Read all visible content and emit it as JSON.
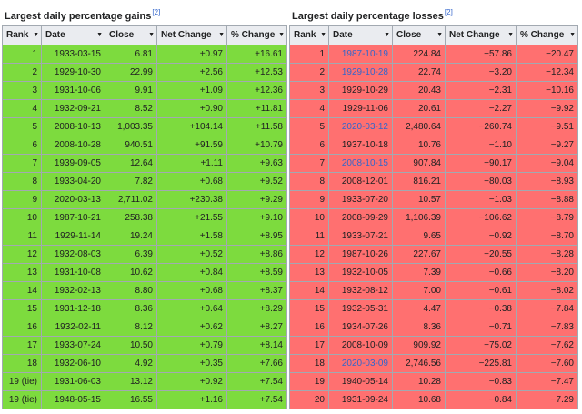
{
  "gains": {
    "title": "Largest daily percentage gains",
    "ref": "[2]",
    "headers": [
      "Rank",
      "Date",
      "Close",
      "Net Change",
      "% Change"
    ],
    "rows": [
      {
        "rank": "1",
        "date": "1933-03-15",
        "close": "6.81",
        "net": "+0.97",
        "pct": "+16.61"
      },
      {
        "rank": "2",
        "date": "1929-10-30",
        "close": "22.99",
        "net": "+2.56",
        "pct": "+12.53"
      },
      {
        "rank": "3",
        "date": "1931-10-06",
        "close": "9.91",
        "net": "+1.09",
        "pct": "+12.36"
      },
      {
        "rank": "4",
        "date": "1932-09-21",
        "close": "8.52",
        "net": "+0.90",
        "pct": "+11.81"
      },
      {
        "rank": "5",
        "date": "2008-10-13",
        "close": "1,003.35",
        "net": "+104.14",
        "pct": "+11.58"
      },
      {
        "rank": "6",
        "date": "2008-10-28",
        "close": "940.51",
        "net": "+91.59",
        "pct": "+10.79"
      },
      {
        "rank": "7",
        "date": "1939-09-05",
        "close": "12.64",
        "net": "+1.11",
        "pct": "+9.63"
      },
      {
        "rank": "8",
        "date": "1933-04-20",
        "close": "7.82",
        "net": "+0.68",
        "pct": "+9.52"
      },
      {
        "rank": "9",
        "date": "2020-03-13",
        "close": "2,711.02",
        "net": "+230.38",
        "pct": "+9.29"
      },
      {
        "rank": "10",
        "date": "1987-10-21",
        "close": "258.38",
        "net": "+21.55",
        "pct": "+9.10"
      },
      {
        "rank": "11",
        "date": "1929-11-14",
        "close": "19.24",
        "net": "+1.58",
        "pct": "+8.95"
      },
      {
        "rank": "12",
        "date": "1932-08-03",
        "close": "6.39",
        "net": "+0.52",
        "pct": "+8.86"
      },
      {
        "rank": "13",
        "date": "1931-10-08",
        "close": "10.62",
        "net": "+0.84",
        "pct": "+8.59"
      },
      {
        "rank": "14",
        "date": "1932-02-13",
        "close": "8.80",
        "net": "+0.68",
        "pct": "+8.37"
      },
      {
        "rank": "15",
        "date": "1931-12-18",
        "close": "8.36",
        "net": "+0.64",
        "pct": "+8.29"
      },
      {
        "rank": "16",
        "date": "1932-02-11",
        "close": "8.12",
        "net": "+0.62",
        "pct": "+8.27"
      },
      {
        "rank": "17",
        "date": "1933-07-24",
        "close": "10.50",
        "net": "+0.79",
        "pct": "+8.14"
      },
      {
        "rank": "18",
        "date": "1932-06-10",
        "close": "4.92",
        "net": "+0.35",
        "pct": "+7.66"
      },
      {
        "rank": "19 (tie)",
        "date": "1931-06-03",
        "close": "13.12",
        "net": "+0.92",
        "pct": "+7.54"
      },
      {
        "rank": "19 (tie)",
        "date": "1948-05-15",
        "close": "16.55",
        "net": "+1.16",
        "pct": "+7.54"
      }
    ]
  },
  "losses": {
    "title": "Largest daily percentage losses",
    "ref": "[2]",
    "headers": [
      "Rank",
      "Date",
      "Close",
      "Net Change",
      "% Change"
    ],
    "rows": [
      {
        "rank": "1",
        "date": "1987-10-19",
        "link": true,
        "close": "224.84",
        "net": "−57.86",
        "pct": "−20.47"
      },
      {
        "rank": "2",
        "date": "1929-10-28",
        "link": true,
        "close": "22.74",
        "net": "−3.20",
        "pct": "−12.34"
      },
      {
        "rank": "3",
        "date": "1929-10-29",
        "link": false,
        "close": "20.43",
        "net": "−2.31",
        "pct": "−10.16"
      },
      {
        "rank": "4",
        "date": "1929-11-06",
        "link": false,
        "close": "20.61",
        "net": "−2.27",
        "pct": "−9.92"
      },
      {
        "rank": "5",
        "date": "2020-03-12",
        "link": true,
        "close": "2,480.64",
        "net": "−260.74",
        "pct": "−9.51"
      },
      {
        "rank": "6",
        "date": "1937-10-18",
        "link": false,
        "close": "10.76",
        "net": "−1.10",
        "pct": "−9.27"
      },
      {
        "rank": "7",
        "date": "2008-10-15",
        "link": true,
        "close": "907.84",
        "net": "−90.17",
        "pct": "−9.04"
      },
      {
        "rank": "8",
        "date": "2008-12-01",
        "link": false,
        "close": "816.21",
        "net": "−80.03",
        "pct": "−8.93"
      },
      {
        "rank": "9",
        "date": "1933-07-20",
        "link": false,
        "close": "10.57",
        "net": "−1.03",
        "pct": "−8.88"
      },
      {
        "rank": "10",
        "date": "2008-09-29",
        "link": false,
        "close": "1,106.39",
        "net": "−106.62",
        "pct": "−8.79"
      },
      {
        "rank": "11",
        "date": "1933-07-21",
        "link": false,
        "close": "9.65",
        "net": "−0.92",
        "pct": "−8.70"
      },
      {
        "rank": "12",
        "date": "1987-10-26",
        "link": false,
        "close": "227.67",
        "net": "−20.55",
        "pct": "−8.28"
      },
      {
        "rank": "13",
        "date": "1932-10-05",
        "link": false,
        "close": "7.39",
        "net": "−0.66",
        "pct": "−8.20"
      },
      {
        "rank": "14",
        "date": "1932-08-12",
        "link": false,
        "close": "7.00",
        "net": "−0.61",
        "pct": "−8.02"
      },
      {
        "rank": "15",
        "date": "1932-05-31",
        "link": false,
        "close": "4.47",
        "net": "−0.38",
        "pct": "−7.84"
      },
      {
        "rank": "16",
        "date": "1934-07-26",
        "link": false,
        "close": "8.36",
        "net": "−0.71",
        "pct": "−7.83"
      },
      {
        "rank": "17",
        "date": "2008-10-09",
        "link": false,
        "close": "909.92",
        "net": "−75.02",
        "pct": "−7.62"
      },
      {
        "rank": "18",
        "date": "2020-03-09",
        "link": true,
        "close": "2,746.56",
        "net": "−225.81",
        "pct": "−7.60"
      },
      {
        "rank": "19",
        "date": "1940-05-14",
        "link": false,
        "close": "10.28",
        "net": "−0.83",
        "pct": "−7.47"
      },
      {
        "rank": "20",
        "date": "1931-09-24",
        "link": false,
        "close": "10.68",
        "net": "−0.84",
        "pct": "−7.29"
      }
    ]
  },
  "colors": {
    "gain_cell": "#7ddb3e",
    "loss_cell": "#ff7070",
    "header_bg": "#eaecf0",
    "link": "#3366cc",
    "border": "#a2a9b1"
  },
  "icons": {
    "sort": "sort-arrows-icon"
  }
}
